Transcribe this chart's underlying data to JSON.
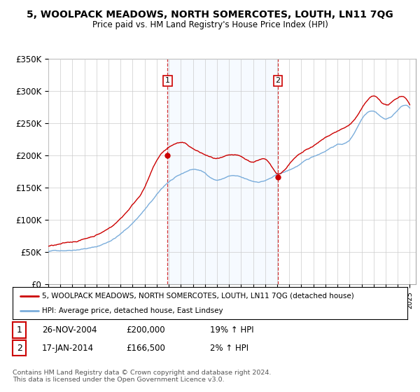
{
  "title": "5, WOOLPACK MEADOWS, NORTH SOMERCOTES, LOUTH, LN11 7QG",
  "subtitle": "Price paid vs. HM Land Registry's House Price Index (HPI)",
  "ylim": [
    0,
    350000
  ],
  "yticks": [
    0,
    50000,
    100000,
    150000,
    200000,
    250000,
    300000,
    350000
  ],
  "ytick_labels": [
    "£0",
    "£50K",
    "£100K",
    "£150K",
    "£200K",
    "£250K",
    "£300K",
    "£350K"
  ],
  "xlim_start": 1995.0,
  "xlim_end": 2025.5,
  "sale1_x": 2004.9,
  "sale1_y": 200000,
  "sale2_x": 2014.05,
  "sale2_y": 166500,
  "sale_color": "#cc0000",
  "hpi_color": "#7aaddb",
  "shade_color": "#ddeeff",
  "legend_label_red": "5, WOOLPACK MEADOWS, NORTH SOMERCOTES, LOUTH, LN11 7QG (detached house)",
  "legend_label_blue": "HPI: Average price, detached house, East Lindsey",
  "table_row1": [
    "1",
    "26-NOV-2004",
    "£200,000",
    "19% ↑ HPI"
  ],
  "table_row2": [
    "2",
    "17-JAN-2014",
    "£166,500",
    "2% ↑ HPI"
  ],
  "footer": "Contains HM Land Registry data © Crown copyright and database right 2024.\nThis data is licensed under the Open Government Licence v3.0.",
  "background_color": "#ffffff",
  "grid_color": "#cccccc"
}
